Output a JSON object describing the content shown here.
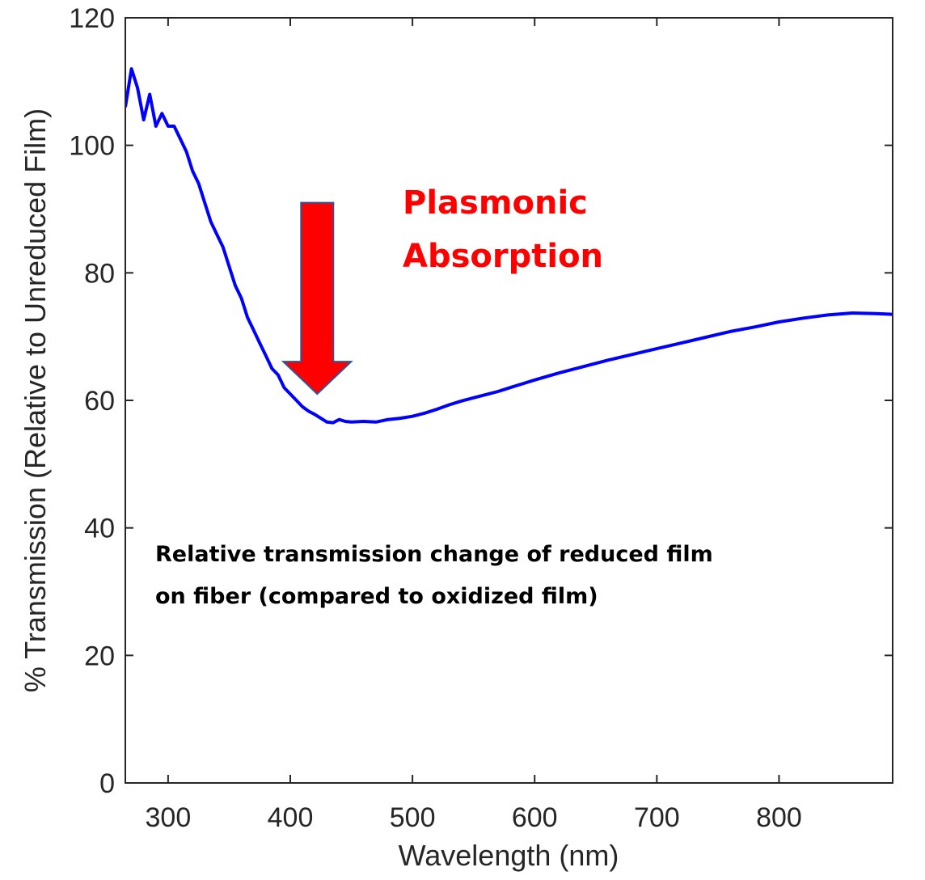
{
  "chart_data": {
    "type": "line",
    "title": "",
    "xlabel": "Wavelength (nm)",
    "ylabel": "% Transmission (Relative to Unreduced Film)",
    "xlim": [
      265,
      893
    ],
    "ylim": [
      0,
      120
    ],
    "xticks": [
      300,
      400,
      500,
      600,
      700,
      800
    ],
    "yticks": [
      0,
      20,
      40,
      60,
      80,
      100,
      120
    ],
    "xtick_labels": [
      "300",
      "400",
      "500",
      "600",
      "700",
      "800"
    ],
    "ytick_labels": [
      "0",
      "20",
      "40",
      "60",
      "80",
      "100",
      "120"
    ],
    "grid": false,
    "legend": "none",
    "series": [
      {
        "color": "#0000ff",
        "x": [
          265,
          270,
          275,
          280,
          285,
          290,
          295,
          300,
          305,
          310,
          315,
          320,
          325,
          330,
          335,
          340,
          345,
          350,
          355,
          360,
          365,
          370,
          375,
          380,
          385,
          390,
          395,
          400,
          405,
          410,
          415,
          420,
          425,
          430,
          435,
          440,
          445,
          450,
          460,
          470,
          480,
          490,
          500,
          510,
          520,
          530,
          540,
          550,
          560,
          570,
          580,
          590,
          600,
          620,
          640,
          660,
          680,
          700,
          720,
          740,
          760,
          780,
          800,
          820,
          840,
          860,
          880,
          893
        ],
        "y": [
          106,
          112,
          109,
          104,
          108,
          103,
          105,
          103,
          103,
          101,
          99,
          96,
          94,
          91,
          88,
          86,
          84,
          81,
          78,
          76,
          73,
          71,
          69,
          67,
          65,
          64,
          62,
          61,
          60,
          59,
          58.3,
          57.8,
          57.2,
          56.6,
          56.5,
          57,
          56.7,
          56.6,
          56.7,
          56.6,
          57,
          57.2,
          57.5,
          58,
          58.6,
          59.3,
          59.9,
          60.4,
          60.9,
          61.4,
          62,
          62.6,
          63.2,
          64.3,
          65.3,
          66.3,
          67.2,
          68.1,
          69,
          69.9,
          70.8,
          71.5,
          72.3,
          72.9,
          73.4,
          73.7,
          73.6,
          73.5
        ]
      }
    ],
    "annotations": [
      {
        "text": "Plasmonic",
        "color": "#ff0000"
      },
      {
        "text": "Absorption",
        "color": "#ff0000"
      },
      {
        "text": "Relative transmission change of reduced film",
        "color": "#000000"
      },
      {
        "text": "on fiber (compared to oxidized film)",
        "color": "#000000"
      }
    ],
    "arrow": {
      "x": 422,
      "y_top": 91,
      "y_tip": 61,
      "color": "#ff0000"
    }
  }
}
